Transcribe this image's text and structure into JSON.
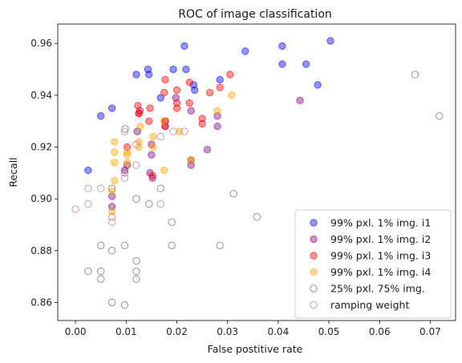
{
  "chart_data": {
    "type": "scatter",
    "title": "ROC of image classification",
    "xlabel": "False postitive rate",
    "ylabel": "Recall",
    "xlim": [
      -0.0035,
      0.075
    ],
    "ylim": [
      0.853,
      0.9675
    ],
    "xticks": [
      0.0,
      0.01,
      0.02,
      0.03,
      0.04,
      0.05,
      0.06,
      0.07
    ],
    "xtick_labels": [
      "0.00",
      "0.01",
      "0.02",
      "0.03",
      "0.04",
      "0.05",
      "0.06",
      "0.07"
    ],
    "yticks": [
      0.86,
      0.88,
      0.9,
      0.92,
      0.94,
      0.96
    ],
    "ytick_labels": [
      "0.86",
      "0.88",
      "0.90",
      "0.92",
      "0.94",
      "0.96"
    ],
    "grid": false,
    "legend_position": "lower-right",
    "series": [
      {
        "name": "99% pxl. 1% img. i1",
        "color": "#0000ff",
        "filled": true,
        "points": [
          [
            0.0025,
            0.911
          ],
          [
            0.005,
            0.932
          ],
          [
            0.0072,
            0.935
          ],
          [
            0.012,
            0.948
          ],
          [
            0.0143,
            0.95
          ],
          [
            0.0145,
            0.948
          ],
          [
            0.0193,
            0.95
          ],
          [
            0.0215,
            0.959
          ],
          [
            0.0218,
            0.95
          ],
          [
            0.0233,
            0.944
          ],
          [
            0.0235,
            0.942
          ],
          [
            0.0285,
            0.946
          ],
          [
            0.0168,
            0.939
          ],
          [
            0.0335,
            0.957
          ],
          [
            0.0408,
            0.959
          ],
          [
            0.0408,
            0.952
          ],
          [
            0.0455,
            0.952
          ],
          [
            0.0503,
            0.961
          ],
          [
            0.0478,
            0.944
          ]
        ]
      },
      {
        "name": "99% pxl. 1% img. i2",
        "color": "#800080",
        "filled": true,
        "points": [
          [
            0.0072,
            0.901
          ],
          [
            0.0072,
            0.897
          ],
          [
            0.0097,
            0.911
          ],
          [
            0.0102,
            0.913
          ],
          [
            0.0122,
            0.926
          ],
          [
            0.0127,
            0.934
          ],
          [
            0.0147,
            0.91
          ],
          [
            0.015,
            0.921
          ],
          [
            0.015,
            0.917
          ],
          [
            0.0152,
            0.908
          ],
          [
            0.0177,
            0.928
          ],
          [
            0.0177,
            0.93
          ],
          [
            0.0198,
            0.939
          ],
          [
            0.0228,
            0.915
          ],
          [
            0.0228,
            0.913
          ],
          [
            0.0228,
            0.934
          ],
          [
            0.026,
            0.919
          ],
          [
            0.028,
            0.932
          ],
          [
            0.028,
            0.928
          ],
          [
            0.0443,
            0.938
          ]
        ]
      },
      {
        "name": "99% pxl. 1% img. i3",
        "color": "#ff0000",
        "filled": true,
        "points": [
          [
            0.0102,
            0.92
          ],
          [
            0.0125,
            0.933
          ],
          [
            0.0125,
            0.933
          ],
          [
            0.0147,
            0.935
          ],
          [
            0.0152,
            0.909
          ],
          [
            0.0175,
            0.941
          ],
          [
            0.0177,
            0.946
          ],
          [
            0.0177,
            0.93
          ],
          [
            0.0177,
            0.928
          ],
          [
            0.02,
            0.942
          ],
          [
            0.02,
            0.937
          ],
          [
            0.02,
            0.935
          ],
          [
            0.0225,
            0.937
          ],
          [
            0.0225,
            0.945
          ],
          [
            0.025,
            0.929
          ],
          [
            0.025,
            0.931
          ],
          [
            0.0265,
            0.941
          ],
          [
            0.0305,
            0.948
          ],
          [
            0.0285,
            0.943
          ],
          [
            0.0123,
            0.936
          ],
          [
            0.0145,
            0.93
          ]
        ]
      },
      {
        "name": "99% pxl. 1% img. i4",
        "color": "#ffa500",
        "filled": true,
        "points": [
          [
            0.0072,
            0.895
          ],
          [
            0.0072,
            0.903
          ],
          [
            0.0077,
            0.907
          ],
          [
            0.0077,
            0.914
          ],
          [
            0.0077,
            0.918
          ],
          [
            0.0077,
            0.922
          ],
          [
            0.0102,
            0.917
          ],
          [
            0.0102,
            0.914
          ],
          [
            0.0102,
            0.918
          ],
          [
            0.0125,
            0.922
          ],
          [
            0.0125,
            0.92
          ],
          [
            0.0128,
            0.928
          ],
          [
            0.0153,
            0.924
          ],
          [
            0.0153,
            0.92
          ],
          [
            0.0175,
            0.911
          ],
          [
            0.0175,
            0.93
          ],
          [
            0.0205,
            0.926
          ],
          [
            0.0228,
            0.915
          ],
          [
            0.028,
            0.934
          ],
          [
            0.0308,
            0.94
          ]
        ]
      },
      {
        "name": "25% pxl. 75% img.",
        "color": "#808080",
        "filled": false,
        "points": [
          [
            0.0025,
            0.872
          ],
          [
            0.005,
            0.882
          ],
          [
            0.005,
            0.872
          ],
          [
            0.005,
            0.869
          ],
          [
            0.0072,
            0.86
          ],
          [
            0.0072,
            0.88
          ],
          [
            0.0072,
            0.904
          ],
          [
            0.0097,
            0.859
          ],
          [
            0.0097,
            0.882
          ],
          [
            0.0097,
            0.91
          ],
          [
            0.012,
            0.876
          ],
          [
            0.012,
            0.872
          ],
          [
            0.012,
            0.869
          ],
          [
            0.012,
            0.9
          ],
          [
            0.0145,
            0.898
          ],
          [
            0.0168,
            0.904
          ],
          [
            0.019,
            0.891
          ],
          [
            0.019,
            0.882
          ],
          [
            0.0285,
            0.882
          ],
          [
            0.0312,
            0.902
          ],
          [
            0.0358,
            0.893
          ],
          [
            0.067,
            0.948
          ],
          [
            0.0718,
            0.932
          ],
          [
            0.0098,
            0.927
          ],
          [
            0.0122,
            0.926
          ]
        ]
      },
      {
        "name": "ramping weight",
        "color": "#bc8f8f",
        "filled": false,
        "points": [
          [
            0.0,
            0.896
          ],
          [
            0.0025,
            0.904
          ],
          [
            0.0025,
            0.898
          ],
          [
            0.005,
            0.904
          ],
          [
            0.0072,
            0.891
          ],
          [
            0.0072,
            0.893
          ],
          [
            0.0097,
            0.908
          ],
          [
            0.0097,
            0.926
          ],
          [
            0.012,
            0.913
          ],
          [
            0.012,
            0.921
          ],
          [
            0.0168,
            0.924
          ],
          [
            0.0168,
            0.898
          ],
          [
            0.0193,
            0.926
          ],
          [
            0.0215,
            0.926
          ]
        ]
      }
    ]
  }
}
